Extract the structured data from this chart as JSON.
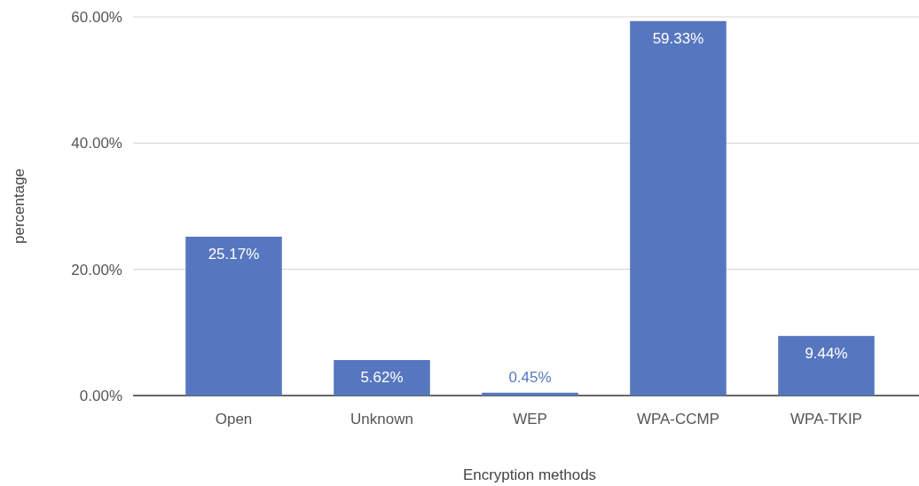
{
  "chart_data": {
    "type": "bar",
    "categories": [
      "Open",
      "Unknown",
      "WEP",
      "WPA-CCMP",
      "WPA-TKIP"
    ],
    "values": [
      25.17,
      5.62,
      0.45,
      59.33,
      9.44
    ],
    "value_labels": [
      "25.17%",
      "5.62%",
      "0.45%",
      "59.33%",
      "9.44%"
    ],
    "color": "#5677bf",
    "xlabel": "Encryption methods",
    "ylabel": "percentage",
    "ylim": [
      0,
      60
    ],
    "yticks": [
      {
        "value": 0,
        "label": "0.00%"
      },
      {
        "value": 20,
        "label": "20.00%"
      },
      {
        "value": 40,
        "label": "40.00%"
      },
      {
        "value": 60,
        "label": "60.00%"
      }
    ],
    "grid": "y"
  }
}
